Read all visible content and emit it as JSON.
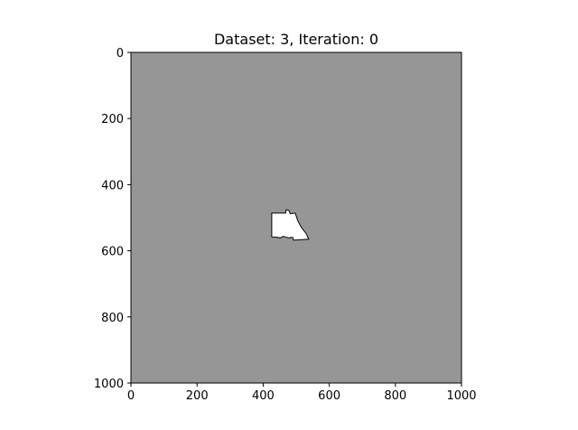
{
  "chart_data": {
    "type": "heatmap",
    "title": "Dataset: 3, Iteration: 0",
    "xlabel": "",
    "ylabel": "",
    "xlim": [
      0,
      1000
    ],
    "ylim": [
      1000,
      0
    ],
    "x_ticks": [
      0,
      200,
      400,
      600,
      800,
      1000
    ],
    "y_ticks": [
      0,
      200,
      400,
      600,
      800,
      1000
    ],
    "x_tick_labels": [
      "0",
      "200",
      "400",
      "600",
      "800",
      "1000"
    ],
    "y_tick_labels": [
      "0",
      "200",
      "400",
      "600",
      "800",
      "1000"
    ],
    "grid": false,
    "background_value_color": "#969696",
    "foreground_value_color": "#ffffff",
    "region_outline_color": "#000000",
    "highlighted_region": {
      "points": [
        [
          426,
          486
        ],
        [
          468,
          486
        ],
        [
          470,
          476
        ],
        [
          478,
          478
        ],
        [
          482,
          488
        ],
        [
          497,
          486
        ],
        [
          505,
          510
        ],
        [
          516,
          530
        ],
        [
          530,
          548
        ],
        [
          538,
          565
        ],
        [
          492,
          568
        ],
        [
          490,
          560
        ],
        [
          486,
          559
        ],
        [
          478,
          561
        ],
        [
          466,
          558
        ],
        [
          460,
          556
        ],
        [
          453,
          561
        ],
        [
          440,
          559
        ],
        [
          426,
          558
        ]
      ]
    }
  }
}
